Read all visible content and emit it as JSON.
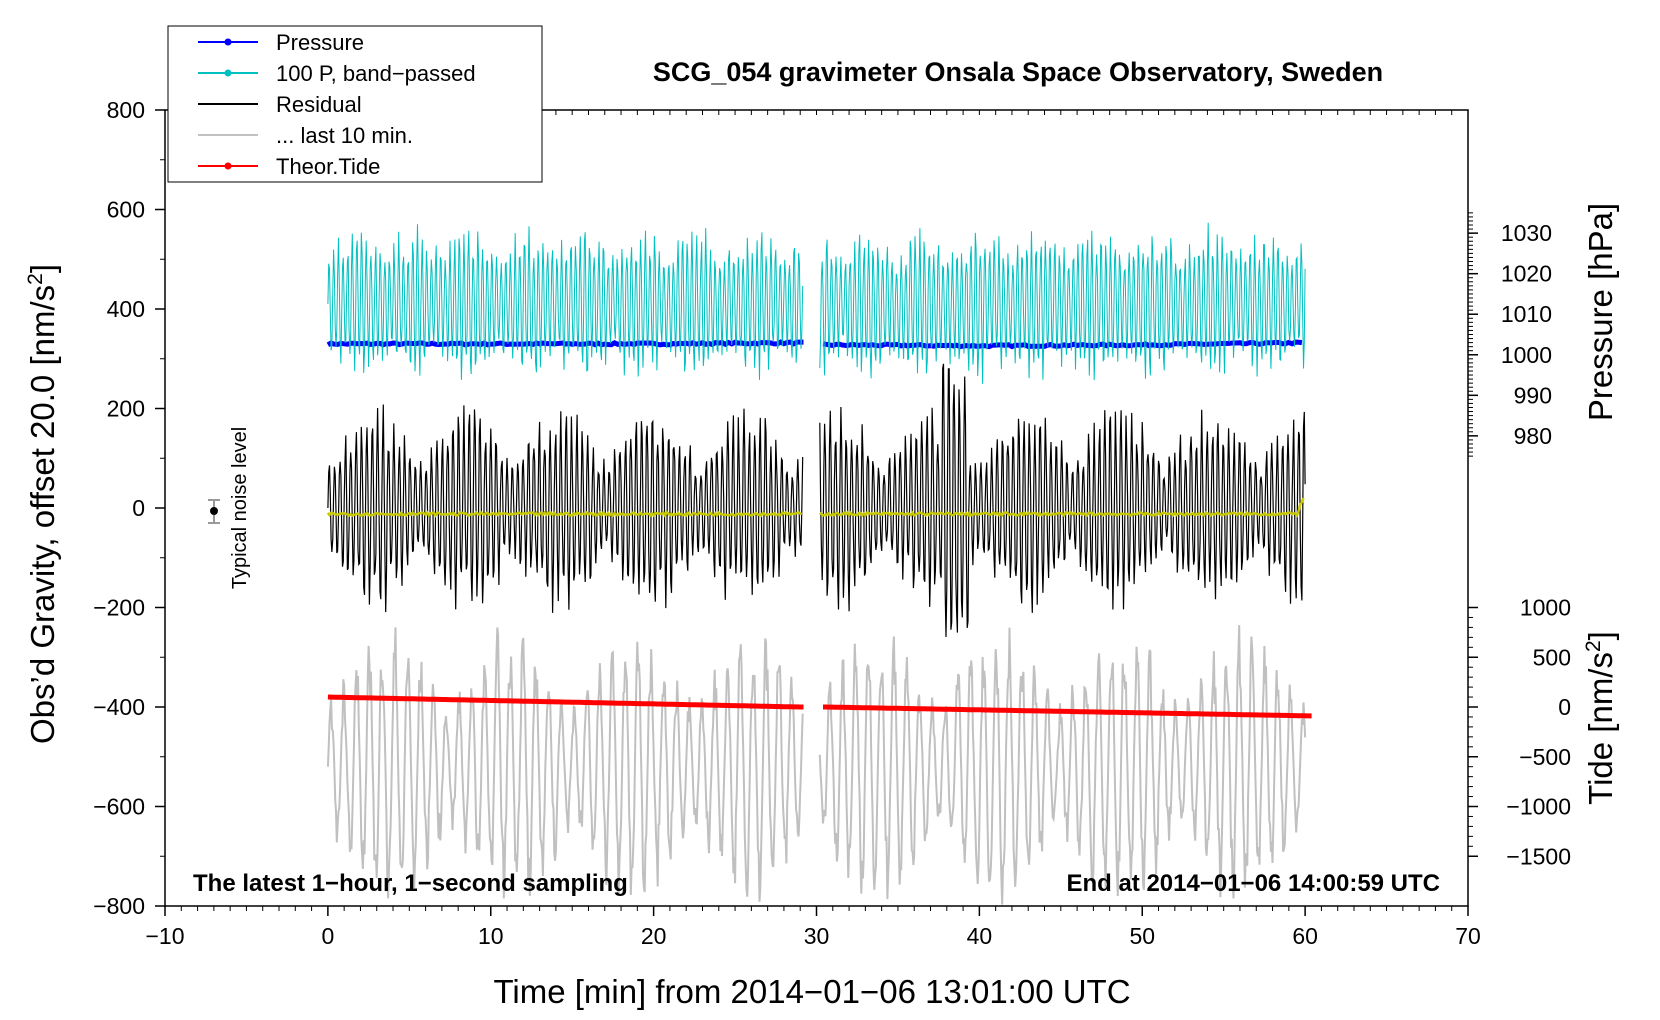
{
  "chart_data": {
    "type": "line",
    "title": "SCG_054 gravimeter Onsala Space Observatory, Sweden",
    "xlabel": "Time [min] from 2014−01−06 13:01:00 UTC",
    "ylabel_left": "Obs’d Gravity, offset 20.0 [nm/s",
    "ylabel_left_sup": "2",
    "ylabel_left_end": "]",
    "ylabel_pressure": "Pressure [hPa]",
    "ylabel_tide": "Tide [nm/s",
    "ylabel_tide_sup": "2",
    "ylabel_tide_end": "]",
    "xlim": [
      -10,
      70
    ],
    "ylim_left": [
      -800,
      800
    ],
    "x_ticks": [
      -10,
      0,
      10,
      20,
      30,
      40,
      50,
      60,
      70
    ],
    "x_tick_labels": [
      "−10",
      "0",
      "10",
      "20",
      "30",
      "40",
      "50",
      "60",
      "70"
    ],
    "y_left_ticks": [
      800,
      600,
      400,
      200,
      0,
      -200,
      -400,
      -600,
      -800
    ],
    "y_left_tick_labels": [
      "800",
      "600",
      "400",
      "200",
      "0",
      "−200",
      "−400",
      "−600",
      "−800"
    ],
    "pressure_axis": {
      "ticks": [
        1030,
        1020,
        1010,
        1000,
        990,
        980
      ],
      "tick_labels": [
        "1030",
        "1020",
        "1010",
        "1000",
        "990",
        "980"
      ],
      "ref_left": [
        1000,
        308
      ],
      "ref_step_hpa_per_nms2": 0.1227
    },
    "tide_axis": {
      "ticks": [
        1000,
        500,
        0,
        -500,
        -1000,
        -1500
      ],
      "tick_labels": [
        "1000",
        "500",
        "0",
        "−500",
        "−1000",
        "−1500"
      ],
      "ref_left": [
        0,
        -400
      ],
      "ref_step_nms2_per_left": 5.0
    },
    "legend": {
      "position": "top-left",
      "entries": [
        {
          "label": "Pressure",
          "color": "#0000ff",
          "marker": true
        },
        {
          "label": "100 P, band−passed",
          "color": "#00c0c0",
          "marker": true
        },
        {
          "label": "Residual",
          "color": "#000000",
          "marker": false
        },
        {
          "label": "... last 10 min.",
          "color": "#c0c0c0",
          "marker": false
        },
        {
          "label": "Theor.Tide",
          "color": "#ff0000",
          "marker": true
        }
      ]
    },
    "annotations": {
      "noise_label": "Typical noise level",
      "bottom_left": "The latest 1−hour, 1−second sampling",
      "bottom_right": "End at 2014−01−06 14:00:59 UTC"
    },
    "gap_minutes": [
      29.2,
      30.2
    ],
    "series": [
      {
        "name": "Pressure",
        "color": "#0000ff",
        "x": [
          0,
          10,
          20,
          29,
          30.5,
          40,
          50,
          60
        ],
        "values": [
          330,
          330,
          330,
          332,
          328,
          326,
          328,
          332
        ]
      },
      {
        "name": "100 P, band-passed",
        "color": "#00c0c0",
        "center": 410,
        "amplitude": 150,
        "x_range": [
          0,
          60
        ]
      },
      {
        "name": "Residual",
        "color": "#000000",
        "center": 0,
        "amplitude": 220,
        "x_range": [
          0,
          60
        ]
      },
      {
        "name": "... last 10 min.",
        "color": "#c0c0c0",
        "center": -520,
        "amplitude": 280,
        "x_range": [
          0,
          60
        ]
      },
      {
        "name": "Smoothed residual",
        "color": "#c8c800",
        "x": [
          0,
          29,
          30.5,
          59.5,
          60
        ],
        "values": [
          -12,
          -12,
          -12,
          -12,
          30
        ]
      },
      {
        "name": "Theor.Tide",
        "color": "#ff0000",
        "x": [
          0,
          29,
          30.5,
          60.5
        ],
        "values": [
          -380,
          -400,
          -400,
          -418
        ]
      }
    ]
  }
}
